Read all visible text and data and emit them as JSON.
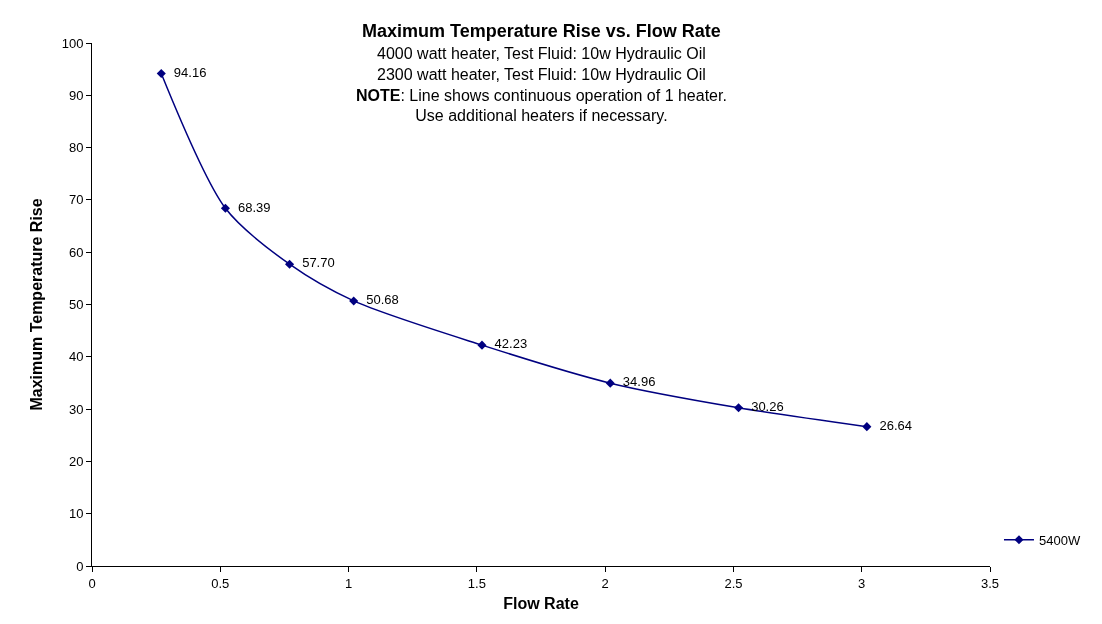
{
  "chart_data": {
    "type": "line",
    "title": "Maximum Temperature Rise vs. Flow Rate",
    "subtitle": "4000 watt heater, Test Fluid: 10w Hydraulic Oil\n2300 watt heater, Test Fluid: 10w Hydraulic Oil",
    "annotations": [
      "NOTE: Line shows continuous operation of 1 heater.\nUse additional heaters if necessary."
    ],
    "xlabel": "Flow Rate",
    "ylabel": "Maximum Temperature Rise",
    "x": [
      0.27,
      0.52,
      0.77,
      1.02,
      1.52,
      2.02,
      2.52,
      3.02
    ],
    "series": [
      {
        "name": "5400W",
        "color": "#000080",
        "values": [
          94.16,
          68.39,
          57.7,
          50.68,
          42.23,
          34.96,
          30.26,
          26.64
        ]
      }
    ],
    "value_labels": [
      "94.16",
      "68.39",
      "57.70",
      "50.68",
      "42.23",
      "34.96",
      "30.26",
      "26.64"
    ],
    "xlim": [
      0,
      3.5
    ],
    "xticks": [
      0,
      0.5,
      1,
      1.5,
      2,
      2.5,
      3,
      3.5
    ],
    "ylim": [
      0,
      100
    ],
    "yticks": [
      0,
      10,
      20,
      30,
      40,
      50,
      60,
      70,
      80,
      90,
      100
    ],
    "legend": "right",
    "marker": "diamond",
    "line_style": "solid"
  }
}
